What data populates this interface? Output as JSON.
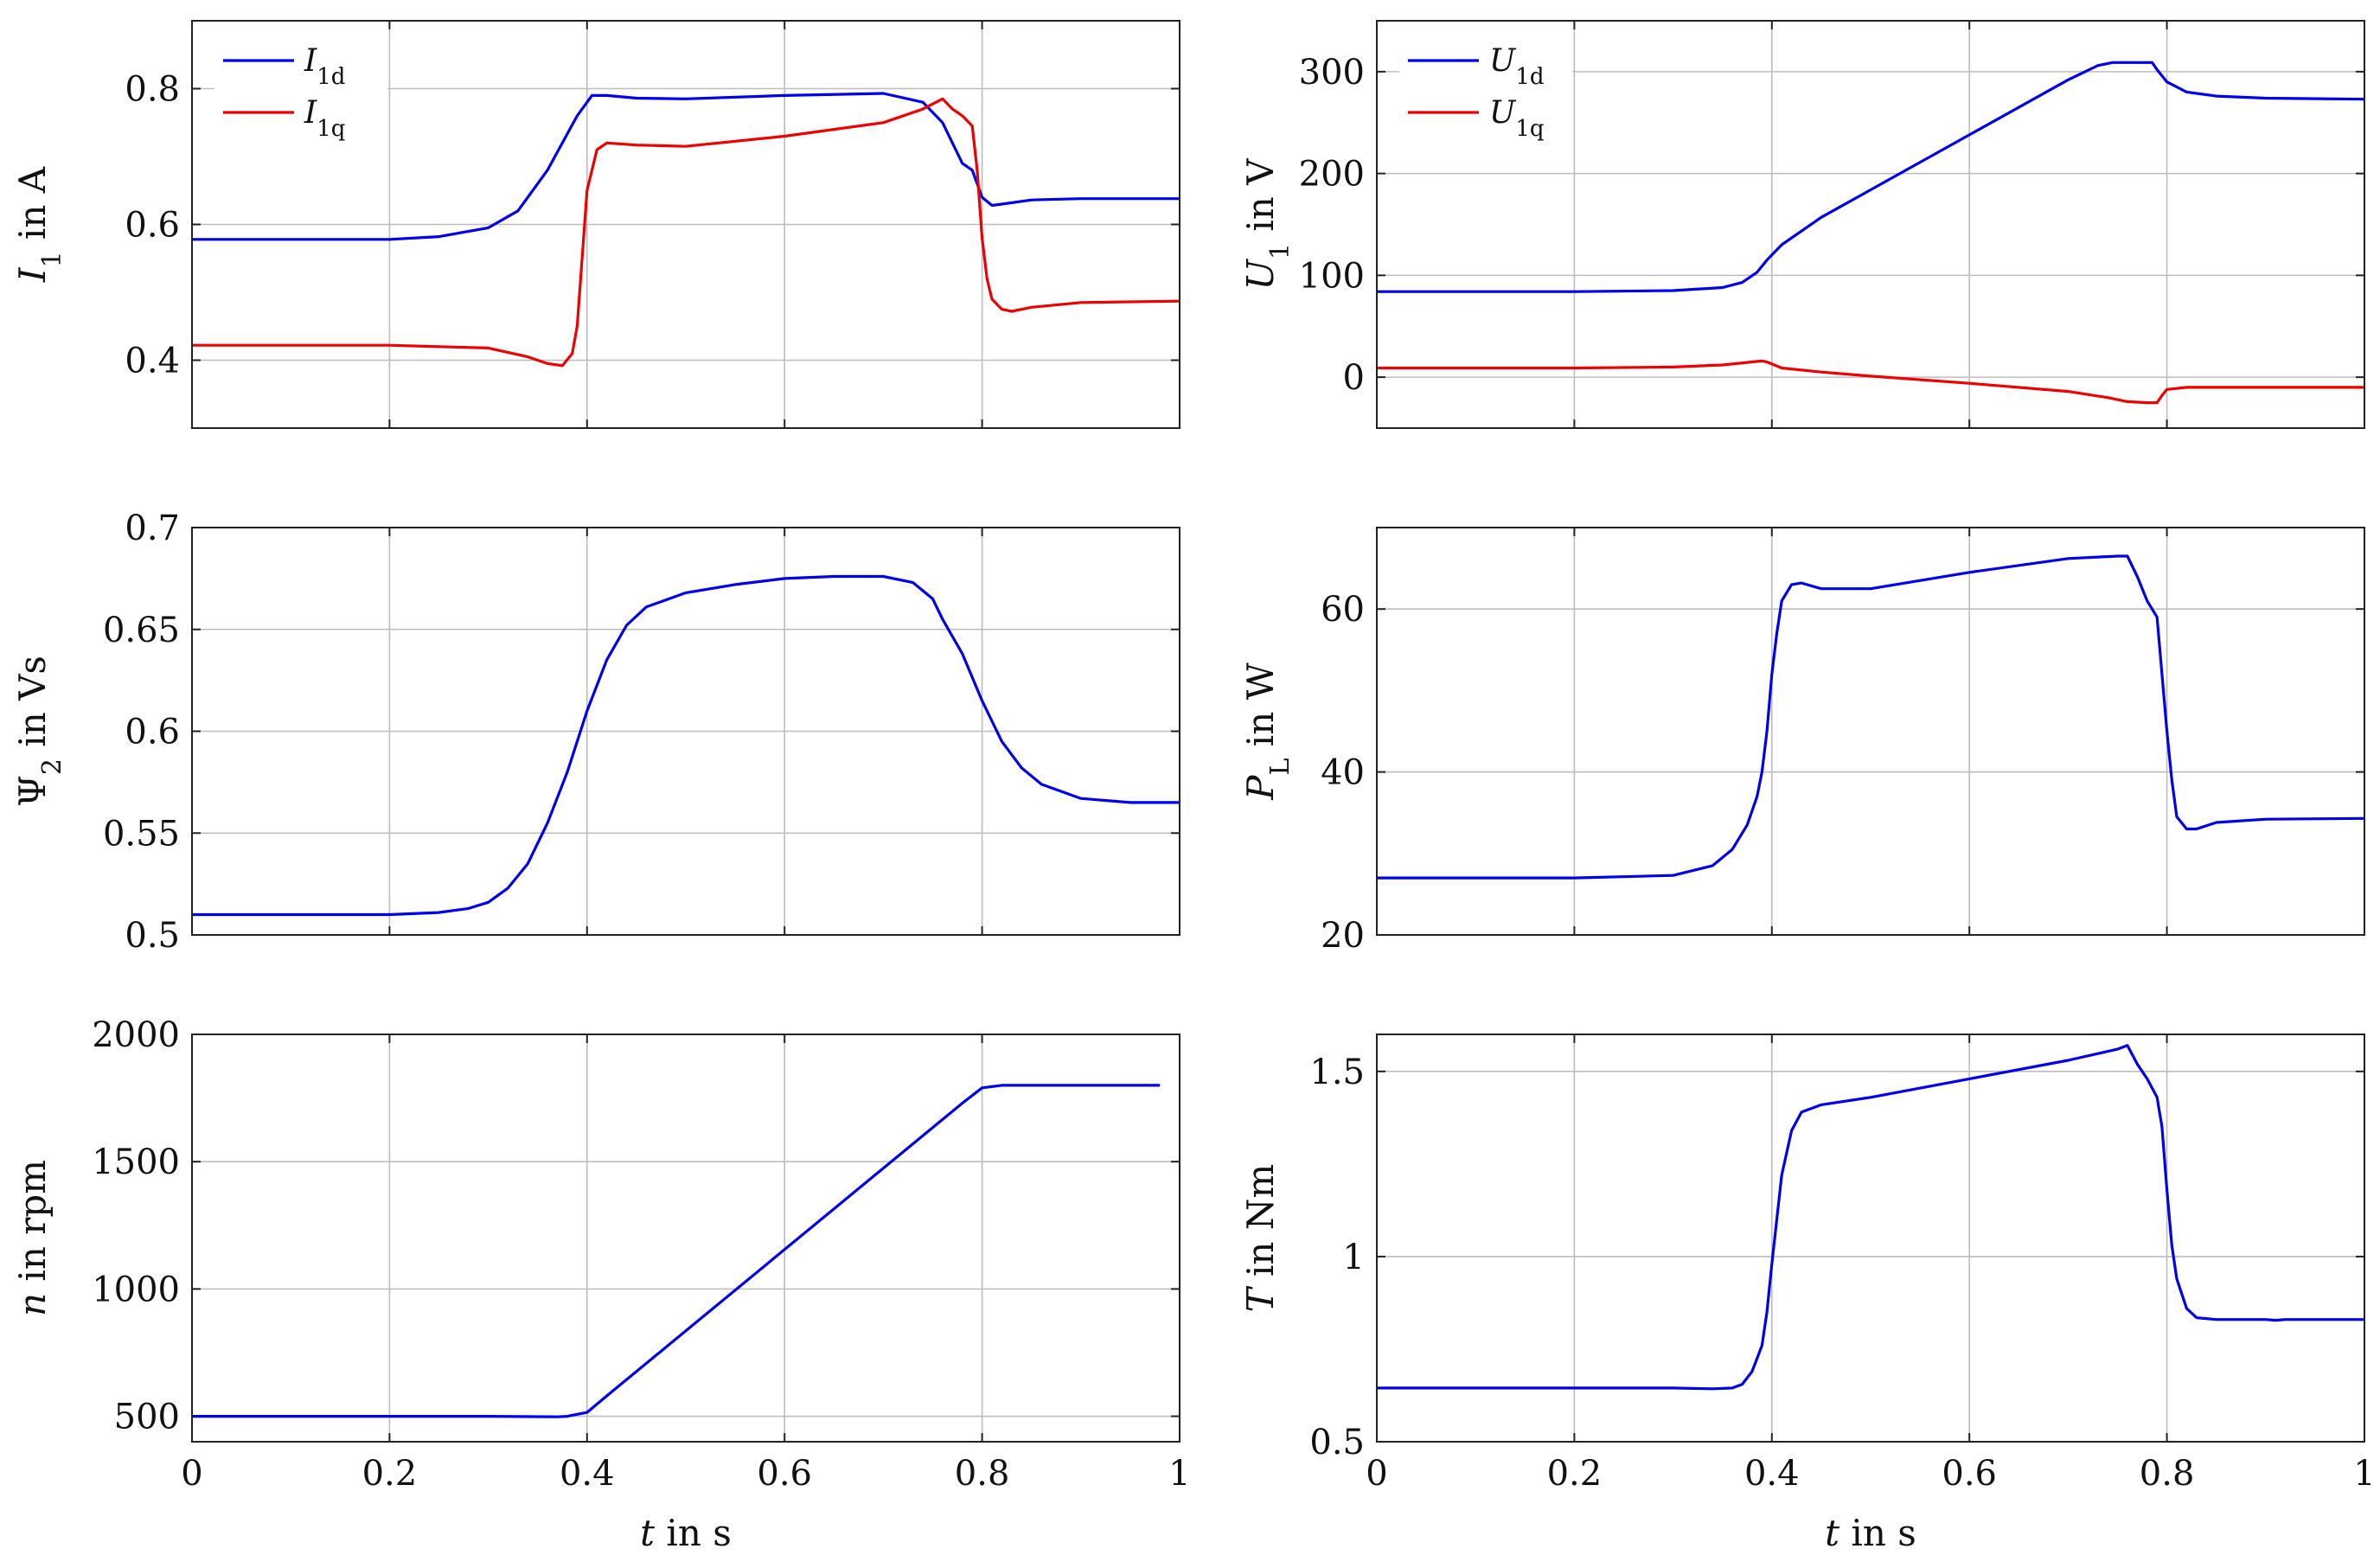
{
  "chart_data": [
    {
      "id": "current",
      "type": "line",
      "title": "",
      "ylabel": {
        "sym": "I",
        "sub": "1",
        "unit": " in A"
      },
      "xlabel": "",
      "xlim": [
        0,
        1
      ],
      "ylim": [
        0.3,
        0.9
      ],
      "xticks": [
        0,
        0.2,
        0.4,
        0.6,
        0.8,
        1
      ],
      "xtick_labels": [
        "0",
        "0.2",
        "0.4",
        "0.6",
        "0.8",
        "1"
      ],
      "yticks": [
        0.4,
        0.6,
        0.8
      ],
      "ytick_labels": [
        "0.4",
        "0.6",
        "0.8"
      ],
      "show_xtick_labels": false,
      "legend": "top-left",
      "series": [
        {
          "name": "I1d",
          "label_sym": "I",
          "label_sub": "1d",
          "color": "#0000ee",
          "x": [
            0,
            0.2,
            0.25,
            0.3,
            0.33,
            0.36,
            0.39,
            0.405,
            0.42,
            0.45,
            0.5,
            0.6,
            0.7,
            0.74,
            0.76,
            0.77,
            0.78,
            0.79,
            0.8,
            0.81,
            0.82,
            0.85,
            0.9,
            1.0
          ],
          "y": [
            0.578,
            0.578,
            0.582,
            0.595,
            0.62,
            0.68,
            0.76,
            0.79,
            0.79,
            0.786,
            0.785,
            0.79,
            0.793,
            0.78,
            0.75,
            0.72,
            0.69,
            0.68,
            0.64,
            0.628,
            0.63,
            0.636,
            0.638,
            0.638
          ]
        },
        {
          "name": "I1q",
          "label_sym": "I",
          "label_sub": "1q",
          "color": "#ee0000",
          "x": [
            0,
            0.2,
            0.3,
            0.34,
            0.36,
            0.375,
            0.385,
            0.39,
            0.395,
            0.4,
            0.41,
            0.42,
            0.45,
            0.5,
            0.6,
            0.7,
            0.74,
            0.76,
            0.77,
            0.78,
            0.79,
            0.795,
            0.8,
            0.805,
            0.81,
            0.82,
            0.83,
            0.85,
            0.9,
            1.0
          ],
          "y": [
            0.422,
            0.422,
            0.418,
            0.405,
            0.395,
            0.392,
            0.41,
            0.45,
            0.55,
            0.65,
            0.71,
            0.72,
            0.717,
            0.715,
            0.73,
            0.75,
            0.77,
            0.785,
            0.77,
            0.76,
            0.745,
            0.68,
            0.58,
            0.52,
            0.49,
            0.475,
            0.472,
            0.478,
            0.485,
            0.487
          ]
        }
      ]
    },
    {
      "id": "voltage",
      "type": "line",
      "title": "",
      "ylabel": {
        "sym": "U",
        "sub": "1",
        "unit": " in V"
      },
      "xlabel": "",
      "xlim": [
        0,
        1
      ],
      "ylim": [
        -50,
        350
      ],
      "xticks": [
        0,
        0.2,
        0.4,
        0.6,
        0.8,
        1
      ],
      "xtick_labels": [
        "0",
        "0.2",
        "0.4",
        "0.6",
        "0.8",
        "1"
      ],
      "yticks": [
        0,
        100,
        200,
        300
      ],
      "ytick_labels": [
        "0",
        "100",
        "200",
        "300"
      ],
      "show_xtick_labels": false,
      "legend": "top-left",
      "series": [
        {
          "name": "U1d",
          "label_sym": "U",
          "label_sub": "1d",
          "color": "#0000ee",
          "x": [
            0,
            0.2,
            0.3,
            0.35,
            0.37,
            0.385,
            0.395,
            0.41,
            0.45,
            0.5,
            0.6,
            0.7,
            0.73,
            0.745,
            0.76,
            0.775,
            0.785,
            0.79,
            0.8,
            0.82,
            0.85,
            0.9,
            1.0
          ],
          "y": [
            84,
            84,
            85,
            88,
            93,
            103,
            115,
            130,
            157,
            184,
            238,
            292,
            306,
            309,
            309,
            309,
            309,
            302,
            290,
            280,
            276,
            274,
            273
          ]
        },
        {
          "name": "U1q",
          "label_sym": "U",
          "label_sub": "1q",
          "color": "#ee0000",
          "x": [
            0,
            0.2,
            0.3,
            0.35,
            0.38,
            0.39,
            0.395,
            0.41,
            0.45,
            0.5,
            0.6,
            0.7,
            0.74,
            0.76,
            0.78,
            0.79,
            0.795,
            0.8,
            0.82,
            0.9,
            1.0
          ],
          "y": [
            9,
            9,
            10,
            12,
            15,
            16,
            15,
            9,
            5,
            1,
            -6,
            -14,
            -20,
            -24,
            -25,
            -25,
            -18,
            -12,
            -10,
            -10,
            -10
          ]
        }
      ]
    },
    {
      "id": "flux",
      "type": "line",
      "title": "",
      "ylabel": {
        "sym": "Ψ",
        "sub": "2",
        "unit": " in Vs",
        "italic": false
      },
      "xlabel": "",
      "xlim": [
        0,
        1
      ],
      "ylim": [
        0.5,
        0.7
      ],
      "xticks": [
        0,
        0.2,
        0.4,
        0.6,
        0.8,
        1
      ],
      "xtick_labels": [
        "0",
        "0.2",
        "0.4",
        "0.6",
        "0.8",
        "1"
      ],
      "yticks": [
        0.5,
        0.55,
        0.6,
        0.65,
        0.7
      ],
      "ytick_labels": [
        "0.5",
        "0.55",
        "0.6",
        "0.65",
        "0.7"
      ],
      "show_xtick_labels": false,
      "legend": "none",
      "series": [
        {
          "name": "Psi2",
          "color": "#0000ee",
          "x": [
            0,
            0.2,
            0.25,
            0.28,
            0.3,
            0.32,
            0.34,
            0.36,
            0.38,
            0.4,
            0.42,
            0.44,
            0.46,
            0.5,
            0.55,
            0.6,
            0.65,
            0.7,
            0.73,
            0.75,
            0.76,
            0.78,
            0.8,
            0.82,
            0.84,
            0.86,
            0.9,
            0.95,
            1.0
          ],
          "y": [
            0.51,
            0.51,
            0.511,
            0.513,
            0.516,
            0.523,
            0.535,
            0.555,
            0.58,
            0.61,
            0.635,
            0.652,
            0.661,
            0.668,
            0.672,
            0.675,
            0.676,
            0.676,
            0.673,
            0.665,
            0.655,
            0.638,
            0.615,
            0.595,
            0.582,
            0.574,
            0.567,
            0.565,
            0.565
          ]
        }
      ]
    },
    {
      "id": "power",
      "type": "line",
      "title": "",
      "ylabel": {
        "sym": "P",
        "sub": "L",
        "unit": " in W"
      },
      "xlabel": "",
      "xlim": [
        0,
        1
      ],
      "ylim": [
        20,
        70
      ],
      "xticks": [
        0,
        0.2,
        0.4,
        0.6,
        0.8,
        1
      ],
      "xtick_labels": [
        "0",
        "0.2",
        "0.4",
        "0.6",
        "0.8",
        "1"
      ],
      "yticks": [
        20,
        40,
        60
      ],
      "ytick_labels": [
        "20",
        "40",
        "60"
      ],
      "show_xtick_labels": false,
      "legend": "none",
      "series": [
        {
          "name": "PL",
          "color": "#0000ee",
          "x": [
            0,
            0.2,
            0.3,
            0.34,
            0.36,
            0.375,
            0.385,
            0.39,
            0.395,
            0.4,
            0.405,
            0.41,
            0.42,
            0.43,
            0.45,
            0.5,
            0.6,
            0.7,
            0.75,
            0.76,
            0.77,
            0.78,
            0.79,
            0.795,
            0.8,
            0.805,
            0.81,
            0.82,
            0.83,
            0.85,
            0.9,
            1.0
          ],
          "y": [
            27,
            27,
            27.3,
            28.5,
            30.5,
            33.5,
            37,
            40,
            45,
            52,
            57,
            61,
            63,
            63.2,
            62.5,
            62.5,
            64.5,
            66.2,
            66.5,
            66.5,
            64,
            61,
            59,
            52,
            45,
            39,
            34.5,
            33,
            33,
            33.8,
            34.2,
            34.3
          ]
        }
      ]
    },
    {
      "id": "speed",
      "type": "line",
      "title": "",
      "ylabel": {
        "sym": "n",
        "sub": "",
        "unit": " in rpm"
      },
      "xlabel": "t in s",
      "xlim": [
        0,
        1
      ],
      "ylim": [
        400,
        2000
      ],
      "xticks": [
        0,
        0.2,
        0.4,
        0.6,
        0.8,
        1
      ],
      "xtick_labels": [
        "0",
        "0.2",
        "0.4",
        "0.6",
        "0.8",
        "1"
      ],
      "yticks": [
        500,
        1000,
        1500,
        2000
      ],
      "ytick_labels": [
        "500",
        "1000",
        "1500",
        "2000"
      ],
      "show_xtick_labels": true,
      "legend": "none",
      "series": [
        {
          "name": "n",
          "color": "#0000ee",
          "x": [
            0,
            0.2,
            0.3,
            0.37,
            0.38,
            0.4,
            0.42,
            0.78,
            0.8,
            0.82,
            0.98
          ],
          "y": [
            500,
            500,
            500,
            498,
            500,
            515,
            580,
            1730,
            1790,
            1800,
            1800
          ]
        }
      ]
    },
    {
      "id": "torque",
      "type": "line",
      "title": "",
      "ylabel": {
        "sym": "T",
        "sub": "",
        "unit": " in Nm"
      },
      "xlabel": "t in s",
      "xlim": [
        0,
        1
      ],
      "ylim": [
        0.5,
        1.6
      ],
      "xticks": [
        0,
        0.2,
        0.4,
        0.6,
        0.8,
        1
      ],
      "xtick_labels": [
        "0",
        "0.2",
        "0.4",
        "0.6",
        "0.8",
        "1"
      ],
      "yticks": [
        0.5,
        1,
        1.5
      ],
      "ytick_labels": [
        "0.5",
        "1",
        "1.5"
      ],
      "show_xtick_labels": true,
      "legend": "none",
      "series": [
        {
          "name": "T",
          "color": "#0000ee",
          "x": [
            0,
            0.2,
            0.3,
            0.34,
            0.36,
            0.37,
            0.38,
            0.39,
            0.395,
            0.4,
            0.405,
            0.41,
            0.42,
            0.43,
            0.45,
            0.5,
            0.6,
            0.7,
            0.75,
            0.76,
            0.77,
            0.78,
            0.79,
            0.795,
            0.8,
            0.805,
            0.81,
            0.82,
            0.83,
            0.85,
            0.9,
            0.91,
            0.92,
            1.0
          ],
          "y": [
            0.645,
            0.645,
            0.645,
            0.643,
            0.645,
            0.655,
            0.69,
            0.76,
            0.85,
            0.98,
            1.1,
            1.22,
            1.34,
            1.39,
            1.41,
            1.43,
            1.48,
            1.53,
            1.56,
            1.57,
            1.52,
            1.48,
            1.43,
            1.35,
            1.18,
            1.03,
            0.94,
            0.86,
            0.835,
            0.83,
            0.83,
            0.828,
            0.83,
            0.83
          ]
        }
      ]
    }
  ]
}
